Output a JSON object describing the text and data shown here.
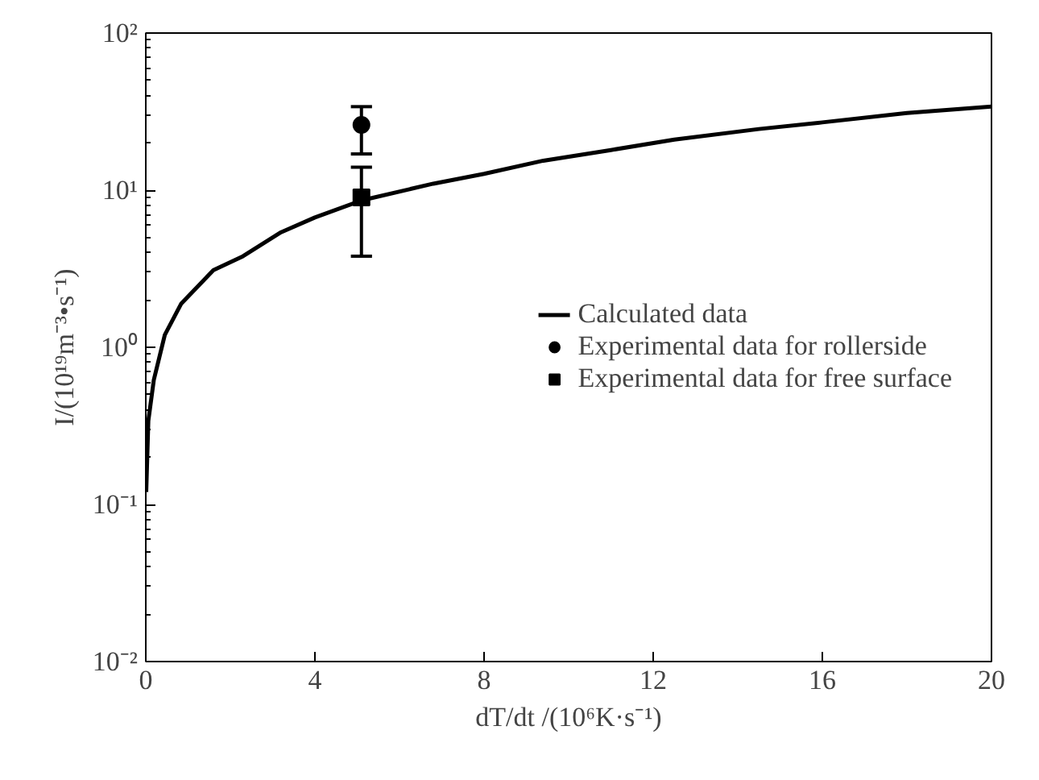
{
  "chart_data": {
    "type": "line",
    "xlabel": "dT/dt /(10⁶K·s⁻¹)",
    "ylabel": "I/(10¹⁹m⁻³•s⁻¹)",
    "log": "y",
    "grid": false,
    "legend": "right",
    "xlim": [
      0,
      20
    ],
    "xticks": [
      0,
      4,
      8,
      12,
      16,
      20
    ],
    "ylim": [
      0.01,
      100
    ],
    "yticks": [
      {
        "value": 0.01,
        "label": "10⁻²"
      },
      {
        "value": 0.1,
        "label": "10⁻¹"
      },
      {
        "value": 1,
        "label": "10⁰"
      },
      {
        "value": 10,
        "label": "10¹"
      },
      {
        "value": 100,
        "label": "10²"
      }
    ],
    "series": [
      {
        "name": "Calculated data",
        "color": "#000000",
        "marker": "none",
        "line_style": "solid",
        "x": [
          0.01,
          0.06,
          0.19,
          0.45,
          0.84,
          1.6,
          2.3,
          3.2,
          4,
          5.1,
          6.8,
          8,
          9.4,
          11,
          12.5,
          14.5,
          16,
          18,
          20
        ],
        "values": [
          0.12,
          0.34,
          0.62,
          1.2,
          1.9,
          3.1,
          3.8,
          5.4,
          6.7,
          8.6,
          11,
          12.7,
          15.4,
          18,
          21,
          24.5,
          27,
          31,
          34
        ]
      },
      {
        "name": "Experimental data for rollerside",
        "type": "scatter",
        "color": "#000000",
        "marker": "circle",
        "x": [
          5.1
        ],
        "values": [
          26
        ],
        "errors": [
          [
            17,
            34
          ]
        ]
      },
      {
        "name": "Experimental data for free surface",
        "type": "scatter",
        "color": "#000000",
        "marker": "square",
        "x": [
          5.1
        ],
        "values": [
          9.0
        ],
        "errors": [
          [
            3.8,
            14
          ]
        ]
      }
    ]
  }
}
